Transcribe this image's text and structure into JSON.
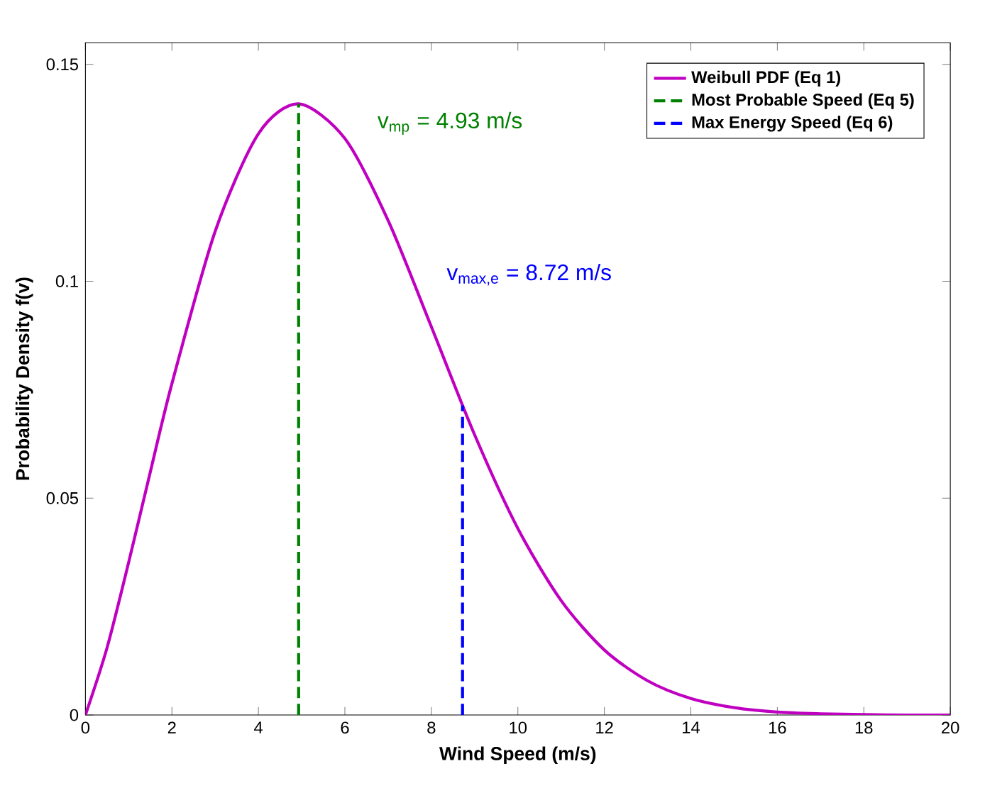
{
  "chart_data": {
    "type": "line",
    "xlabel": "Wind Speed (m/s)",
    "ylabel": "Probability Density f(v)",
    "xlim": [
      0,
      20
    ],
    "ylim": [
      0,
      0.155
    ],
    "xticks": [
      0,
      2,
      4,
      6,
      8,
      10,
      12,
      14,
      16,
      18,
      20
    ],
    "yticks": [
      0,
      {
        "value": 0.05,
        "label": "0.05"
      },
      {
        "value": 0.1,
        "label": "0.1"
      },
      {
        "value": 0.15,
        "label": "0.15"
      }
    ],
    "grid": false,
    "legend": "top right",
    "marker": "none",
    "series": [
      {
        "name": "Weibull PDF (Eq 1)",
        "color": "#c000c0",
        "line_style": "solid",
        "x": [
          0,
          0.5,
          1,
          1.5,
          2,
          3,
          4,
          4.93,
          6,
          7,
          8,
          9,
          10,
          11,
          12,
          13,
          14,
          15,
          16,
          17,
          18,
          19,
          20
        ],
        "values": [
          0,
          0.0155,
          0.0352,
          0.056,
          0.0764,
          0.1115,
          0.134,
          0.1409,
          0.1329,
          0.114,
          0.0895,
          0.0646,
          0.043,
          0.0264,
          0.015,
          0.0079,
          0.0038,
          0.0017,
          0.0007,
          0.0003,
          0.0001,
          0,
          0
        ]
      },
      {
        "name": "Most Probable Speed (Eq 5)",
        "color": "#008000",
        "line_style": "dashed",
        "x": [
          4.93,
          4.93
        ],
        "values": [
          0,
          0.1409
        ]
      },
      {
        "name": "Max Energy Speed (Eq 6)",
        "color": "#0000ff",
        "line_style": "dashed",
        "x": [
          8.72,
          8.72
        ],
        "values": [
          0,
          0.0714
        ]
      }
    ],
    "annotations": [
      "v$_{mp}$ = 4.93 m/s",
      "v$_{max,e}$ = 8.72 m/s"
    ]
  }
}
